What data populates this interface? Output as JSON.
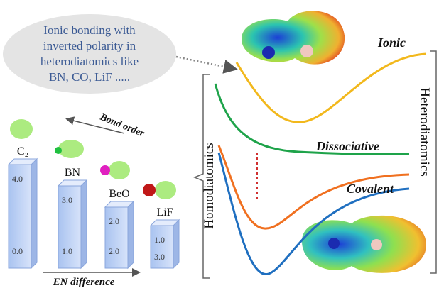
{
  "bubble": {
    "lines": [
      "Ionic bonding with",
      "inverted polarity in",
      "heterodiatomics like",
      "BN, CO, LiF ....."
    ]
  },
  "curves": {
    "ionic": "Ionic",
    "dissociative": "Dissociative",
    "covalent": "Covalent"
  },
  "brackets": {
    "left": "Homodiatomics",
    "right": "Heterodiatomics"
  },
  "arrows": {
    "bond_order": "Bond order",
    "en_difference": "EN difference"
  },
  "molecules": [
    {
      "name": "C₂",
      "top": "4.0",
      "bottom": "0.0"
    },
    {
      "name": "BN",
      "top": "3.0",
      "bottom": "1.0"
    },
    {
      "name": "BeO",
      "top": "2.0",
      "bottom": "2.0"
    },
    {
      "name": "LiF",
      "top": "1.0",
      "bottom": "3.0"
    }
  ]
}
